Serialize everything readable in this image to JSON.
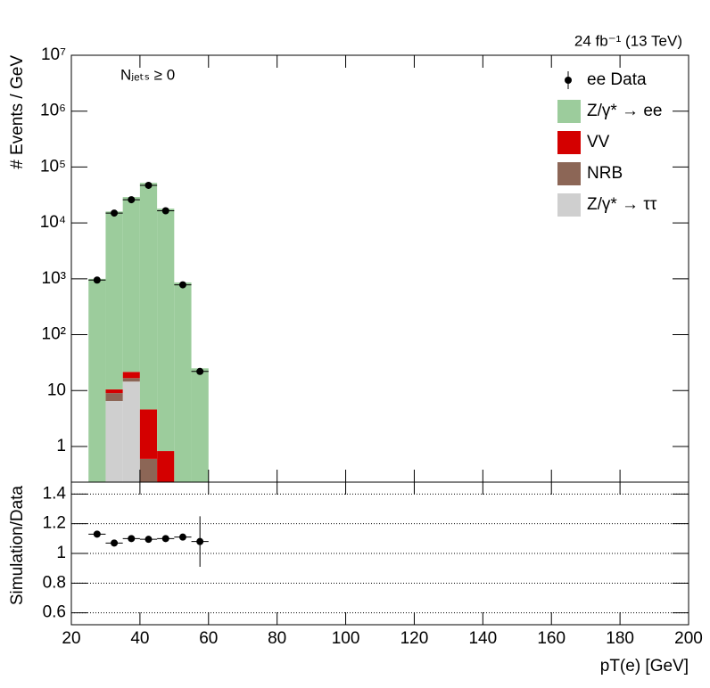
{
  "chart_data": [
    {
      "type": "histogram",
      "title": "24 fb⁻¹ (13 TeV)",
      "annotation": "Nⱼₑₜₛ ≥ 0",
      "ylabel": "# Events / GeV",
      "log_y": true,
      "bins": [
        25,
        30,
        35,
        40,
        45,
        50,
        55,
        60
      ],
      "series": [
        {
          "name": "Z/γ* → ττ",
          "color": "#cfcfcf",
          "values": [
            0,
            6.5,
            14.5,
            0,
            0,
            0,
            0
          ]
        },
        {
          "name": "NRB",
          "color": "#8c6656",
          "values": [
            0,
            2.5,
            2.2,
            0.6,
            0,
            0,
            0
          ]
        },
        {
          "name": "VV",
          "color": "#d40000",
          "values": [
            0,
            1.5,
            4.9,
            4.0,
            0.83,
            0,
            0
          ]
        },
        {
          "name": "Z/γ* → ee",
          "color": "#9ccc9c",
          "values": [
            1000,
            16000,
            29000,
            52000,
            18000,
            860,
            25
          ]
        }
      ],
      "data": {
        "name": "ee Data",
        "color": "#000000",
        "values": [
          950,
          15000,
          26000,
          47000,
          16500,
          780,
          22
        ]
      },
      "legend": "top-right",
      "ylim": [
        0.23,
        10000000
      ],
      "yticks": [
        1,
        10,
        {
          "value": 100,
          "label": "10²"
        },
        {
          "value": 1000,
          "label": "10³"
        },
        {
          "value": 10000,
          "label": "10⁴"
        },
        {
          "value": 100000,
          "label": "10⁵"
        },
        {
          "value": 1000000,
          "label": "10⁶"
        },
        {
          "value": 10000000,
          "label": "10⁷"
        }
      ]
    },
    {
      "type": "scatter",
      "ylabel": "Simulation/Data",
      "xlabel": "pT(e) [GeV]",
      "x": [
        27.5,
        32.5,
        37.5,
        42.5,
        47.5,
        52.5,
        57.5
      ],
      "values": [
        1.13,
        1.07,
        1.1,
        1.095,
        1.1,
        1.11,
        1.08
      ],
      "errors": [
        0.005,
        0.004,
        0.004,
        0.003,
        0.004,
        0.01,
        0.17
      ],
      "color": "#000000",
      "grid": true,
      "xlim": [
        20,
        200
      ],
      "xticks": [
        20,
        40,
        60,
        80,
        100,
        120,
        140,
        160,
        180,
        200
      ],
      "ylim": [
        0.52,
        1.48
      ],
      "yticks": [
        0.6,
        0.8,
        1,
        1.2,
        1.4
      ]
    }
  ]
}
